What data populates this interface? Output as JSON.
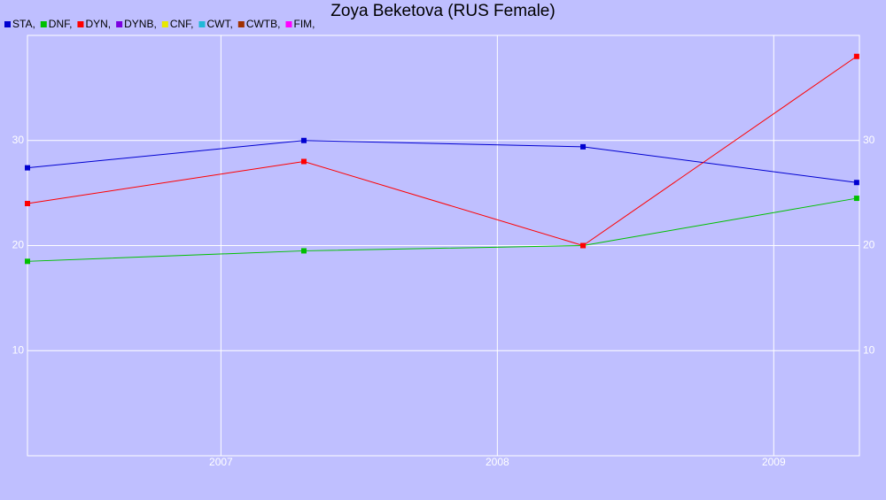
{
  "chart_data": {
    "type": "line",
    "title": "Zoya Beketova (RUS Female)",
    "x": [
      2006.3,
      2007.3,
      2008.31,
      2009.3
    ],
    "xlim": [
      2006.3,
      2009.31
    ],
    "xticks": [
      2007,
      2008,
      2009
    ],
    "ylim": [
      0,
      40
    ],
    "yticks": [
      10,
      20,
      30
    ],
    "grid": true,
    "series": [
      {
        "name": "STA,",
        "color": "#0000d0",
        "values": [
          27.4,
          30,
          29.4,
          26
        ]
      },
      {
        "name": "DNF,",
        "color": "#00c000",
        "values": [
          18.5,
          19.5,
          20,
          24.5
        ]
      },
      {
        "name": "DYN,",
        "color": "#ff0000",
        "values": [
          24,
          28,
          20,
          38
        ]
      },
      {
        "name": "DYNB,",
        "color": "#7b00e0",
        "values": [
          null,
          null,
          null,
          null
        ]
      },
      {
        "name": "CNF,",
        "color": "#e8e800",
        "values": [
          null,
          null,
          null,
          null
        ]
      },
      {
        "name": "CWT,",
        "color": "#20b8d8",
        "values": [
          null,
          null,
          null,
          null
        ]
      },
      {
        "name": "CWTB,",
        "color": "#a03000",
        "values": [
          null,
          null,
          null,
          null
        ]
      },
      {
        "name": "FIM,",
        "color": "#ff00ff",
        "values": [
          null,
          null,
          null,
          null
        ]
      }
    ]
  }
}
